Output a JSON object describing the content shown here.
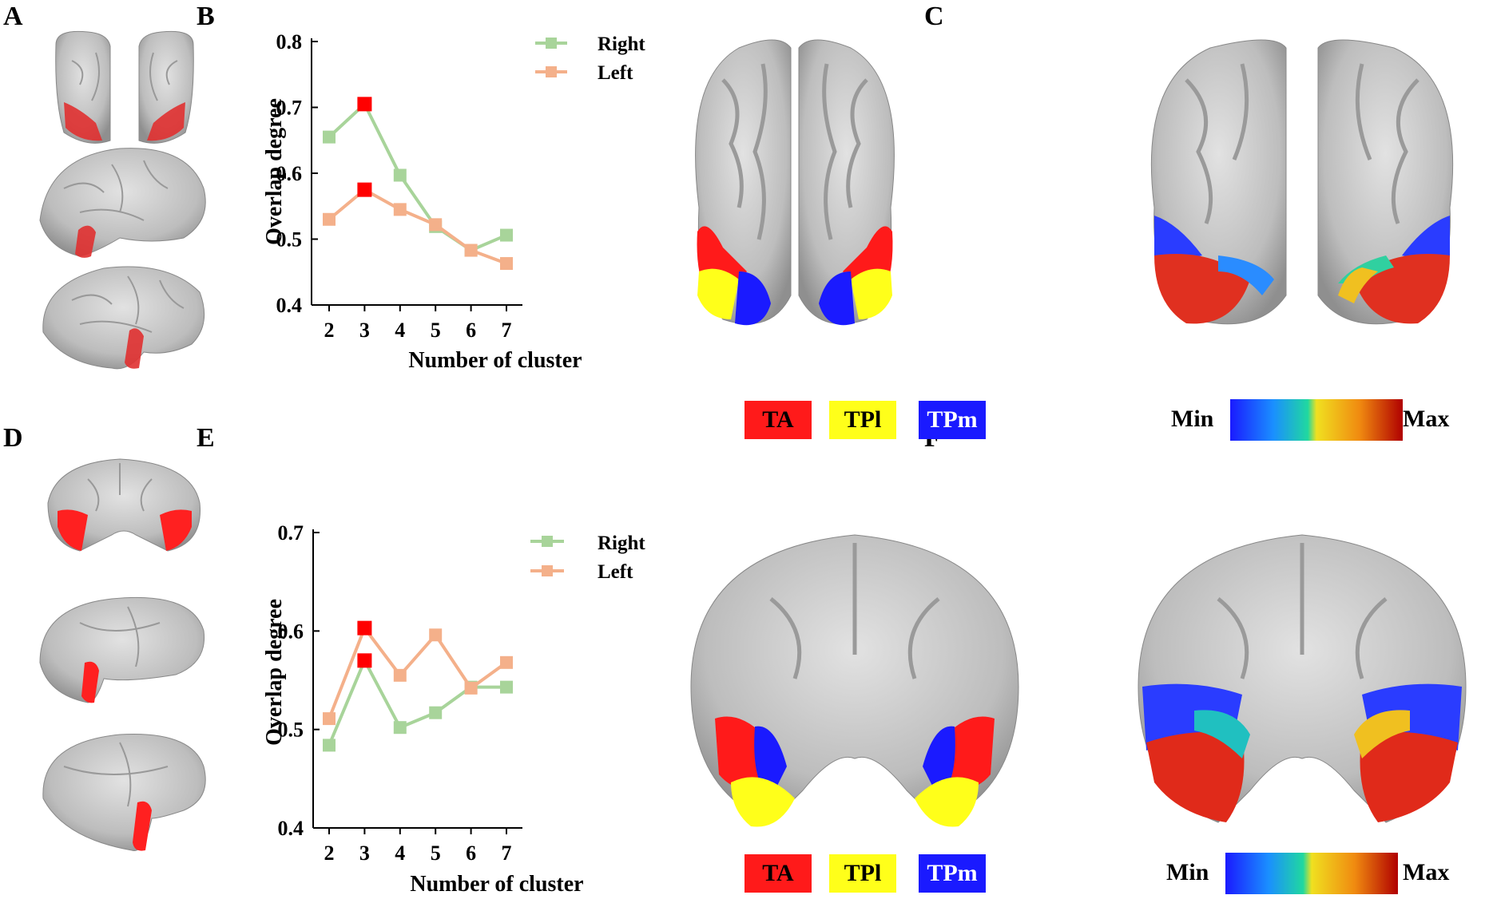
{
  "panels": {
    "A": "A",
    "B": "B",
    "C": "C",
    "D": "D",
    "E": "E",
    "F": "F"
  },
  "colors": {
    "right": "#a8d49a",
    "left": "#f4b08a",
    "highlight": "#ff0000",
    "TA": "#ff1a1a",
    "TPl": "#ffff1a",
    "TPm": "#1a1aff",
    "brain": "#c8c8c8"
  },
  "parcel_legend_top": {
    "TA": "TA",
    "TPl": "TPl",
    "TPm": "TPm"
  },
  "parcel_legend_bottom": {
    "TA": "TA",
    "TPl": "TPl",
    "TPm": "TPm"
  },
  "colorbar_top": {
    "min": "Min",
    "max": "Max"
  },
  "colorbar_bottom": {
    "min": "Min",
    "max": "Max"
  },
  "chart_data": [
    {
      "type": "line",
      "panel": "B",
      "x": [
        2,
        3,
        4,
        5,
        6,
        7
      ],
      "xlabel": "Number of cluster",
      "ylabel": "Overlap degree",
      "ylim": [
        0.4,
        0.8
      ],
      "yticks": [
        "0.4",
        "0.5",
        "0.6",
        "0.7",
        "0.8"
      ],
      "xticks": [
        "2",
        "3",
        "4",
        "5",
        "6",
        "7"
      ],
      "highlight_x": 3,
      "legend_position": "top-right",
      "series": [
        {
          "name": "Right",
          "values": [
            0.655,
            0.705,
            0.597,
            0.519,
            0.483,
            0.506
          ]
        },
        {
          "name": "Left",
          "values": [
            0.53,
            0.575,
            0.545,
            0.522,
            0.483,
            0.463
          ]
        }
      ]
    },
    {
      "type": "line",
      "panel": "E",
      "x": [
        2,
        3,
        4,
        5,
        6,
        7
      ],
      "xlabel": "Number of cluster",
      "ylabel": "Overlap degree",
      "ylim": [
        0.4,
        0.7
      ],
      "yticks": [
        "0.4",
        "0.5",
        "0.6",
        "0.7"
      ],
      "xticks": [
        "2",
        "3",
        "4",
        "5",
        "6",
        "7"
      ],
      "highlight_x": 3,
      "legend_position": "top-right",
      "series": [
        {
          "name": "Right",
          "values": [
            0.484,
            0.57,
            0.502,
            0.517,
            0.543,
            0.543
          ]
        },
        {
          "name": "Left",
          "values": [
            0.511,
            0.603,
            0.555,
            0.596,
            0.542,
            0.568
          ]
        }
      ]
    }
  ]
}
